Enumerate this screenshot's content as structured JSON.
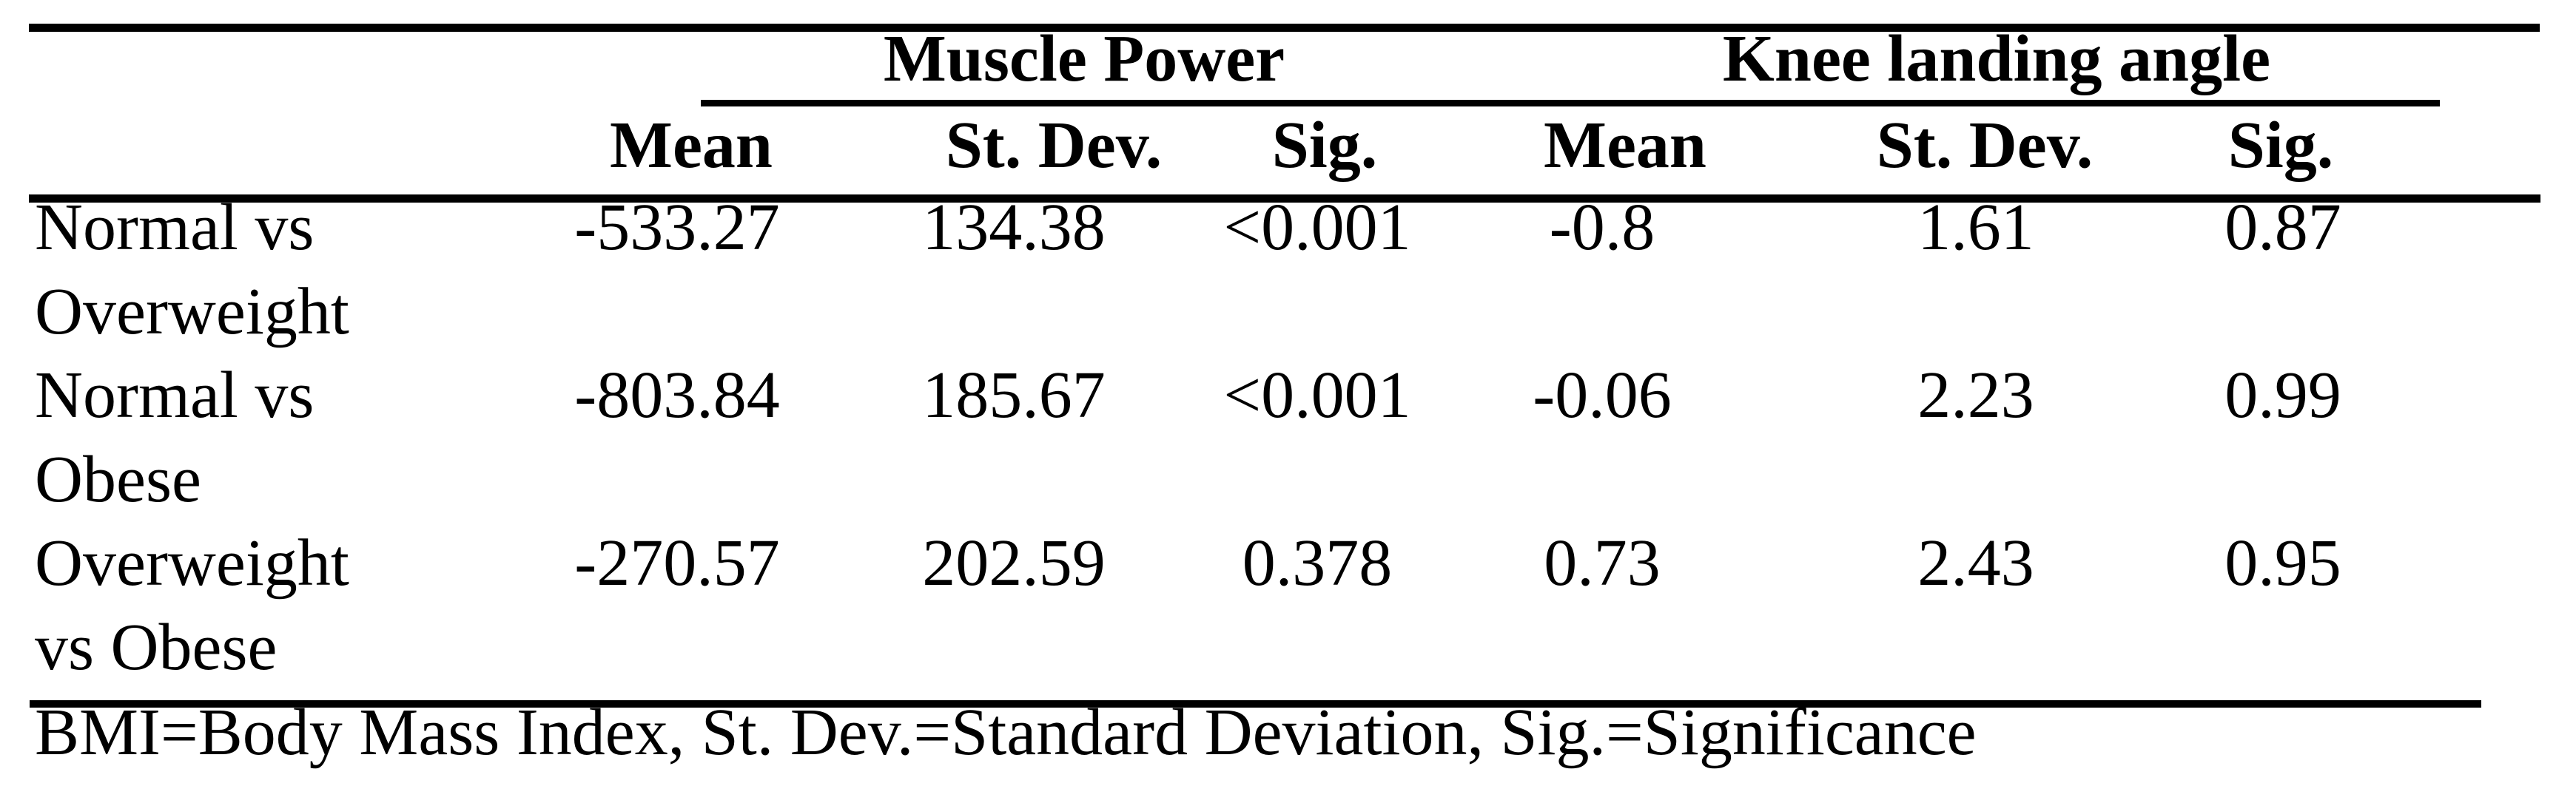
{
  "table": {
    "col_groups": [
      {
        "label": "Muscle Power"
      },
      {
        "label": "Knee landing angle"
      }
    ],
    "sub_headers": [
      "Mean",
      "St. Dev.",
      "Sig.",
      "Mean",
      "St. Dev.",
      "Sig."
    ],
    "rows": [
      {
        "label_line1": "Normal vs",
        "label_line2": "Overweight",
        "values": [
          "-533.27",
          "134.38",
          "<0.001",
          "-0.8",
          "1.61",
          "0.87"
        ]
      },
      {
        "label_line1": "Normal vs",
        "label_line2": "Obese",
        "values": [
          "-803.84",
          "185.67",
          "<0.001",
          "-0.06",
          "2.23",
          "0.99"
        ]
      },
      {
        "label_line1": "Overweight",
        "label_line2": "vs Obese",
        "values": [
          "-270.57",
          "202.59",
          "0.378",
          "0.73",
          "2.43",
          "0.95"
        ]
      }
    ],
    "footnote": "BMI=Body Mass Index, St. Dev.=Standard Deviation, Sig.=Significance"
  }
}
